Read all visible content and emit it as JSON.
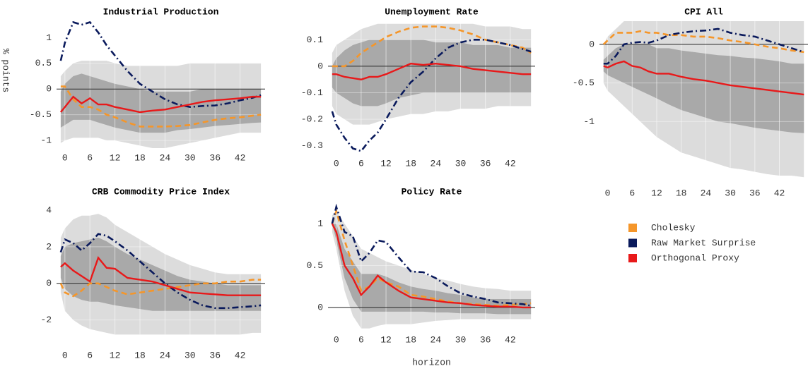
{
  "chart_data": [
    {
      "type": "line",
      "title": "Industrial Production",
      "y_label": "% points",
      "x": [
        -1,
        0,
        2,
        4,
        6,
        8,
        10,
        12,
        15,
        18,
        21,
        24,
        27,
        30,
        33,
        36,
        39,
        42,
        45,
        47
      ],
      "xlim": [
        -2,
        48
      ],
      "xticks": [
        0,
        6,
        12,
        18,
        24,
        30,
        36,
        42
      ],
      "ylim": [
        -1.15,
        1.32
      ],
      "yticks": [
        -1,
        -0.5,
        0,
        0.5,
        1
      ],
      "grid": true,
      "hline": 0,
      "bands": [
        {
          "color": "#dcdcdc",
          "upper": [
            0.25,
            0.35,
            0.5,
            0.55,
            0.55,
            0.55,
            0.55,
            0.5,
            0.45,
            0.45,
            0.45,
            0.45,
            0.45,
            0.5,
            0.5,
            0.5,
            0.5,
            0.5,
            0.5,
            0.5
          ],
          "lower": [
            -1.05,
            -1.0,
            -0.95,
            -0.95,
            -0.95,
            -0.95,
            -1.0,
            -1.0,
            -1.05,
            -1.1,
            -1.15,
            -1.15,
            -1.1,
            -1.05,
            -1.0,
            -0.95,
            -0.9,
            -0.85,
            -0.85,
            -0.85
          ]
        },
        {
          "color": "#a9a9a9",
          "upper": [
            -0.05,
            0.1,
            0.25,
            0.3,
            0.25,
            0.2,
            0.15,
            0.1,
            0.05,
            0.0,
            -0.05,
            -0.05,
            -0.05,
            -0.05,
            0.0,
            0.0,
            0.0,
            0.0,
            0.0,
            0.0
          ],
          "lower": [
            -0.75,
            -0.7,
            -0.6,
            -0.6,
            -0.6,
            -0.65,
            -0.7,
            -0.75,
            -0.8,
            -0.85,
            -0.85,
            -0.85,
            -0.8,
            -0.78,
            -0.75,
            -0.72,
            -0.7,
            -0.68,
            -0.66,
            -0.65
          ]
        }
      ],
      "series": [
        {
          "name": "Cholesky",
          "color": "#f5962a",
          "style": "dashed",
          "values": [
            0.05,
            0.05,
            -0.2,
            -0.35,
            -0.35,
            -0.4,
            -0.5,
            -0.55,
            -0.65,
            -0.73,
            -0.73,
            -0.73,
            -0.72,
            -0.7,
            -0.65,
            -0.6,
            -0.57,
            -0.55,
            -0.52,
            -0.5
          ]
        },
        {
          "name": "Raw Market Surprise",
          "color": "#0a1a5c",
          "style": "dashdot",
          "values": [
            0.55,
            0.9,
            1.3,
            1.25,
            1.3,
            1.1,
            0.85,
            0.65,
            0.35,
            0.1,
            -0.05,
            -0.2,
            -0.3,
            -0.35,
            -0.33,
            -0.32,
            -0.28,
            -0.22,
            -0.17,
            -0.12
          ]
        },
        {
          "name": "Orthogonal Proxy",
          "color": "#e8191a",
          "style": "solid",
          "values": [
            -0.45,
            -0.35,
            -0.15,
            -0.28,
            -0.18,
            -0.3,
            -0.3,
            -0.35,
            -0.4,
            -0.45,
            -0.42,
            -0.4,
            -0.35,
            -0.3,
            -0.25,
            -0.22,
            -0.2,
            -0.18,
            -0.15,
            -0.15
          ]
        }
      ]
    },
    {
      "type": "line",
      "title": "Unemployment Rate",
      "x": [
        -1,
        0,
        2,
        4,
        6,
        8,
        10,
        12,
        15,
        18,
        21,
        24,
        27,
        30,
        33,
        36,
        39,
        42,
        45,
        47
      ],
      "xlim": [
        -2,
        48
      ],
      "xticks": [
        0,
        6,
        12,
        18,
        24,
        30,
        36,
        42
      ],
      "ylim": [
        -0.33,
        0.17
      ],
      "yticks": [
        -0.3,
        -0.2,
        -0.1,
        0,
        0.1
      ],
      "grid": true,
      "hline": 0,
      "bands": [
        {
          "color": "#dcdcdc",
          "upper": [
            0.05,
            0.08,
            0.1,
            0.12,
            0.14,
            0.15,
            0.16,
            0.16,
            0.16,
            0.16,
            0.16,
            0.16,
            0.16,
            0.16,
            0.16,
            0.15,
            0.15,
            0.15,
            0.14,
            0.14
          ],
          "lower": [
            -0.15,
            -0.18,
            -0.2,
            -0.22,
            -0.22,
            -0.22,
            -0.21,
            -0.2,
            -0.19,
            -0.18,
            -0.18,
            -0.17,
            -0.17,
            -0.16,
            -0.16,
            -0.16,
            -0.15,
            -0.15,
            -0.15,
            -0.15
          ]
        },
        {
          "color": "#a9a9a9",
          "upper": [
            0.0,
            0.03,
            0.06,
            0.08,
            0.09,
            0.1,
            0.1,
            0.1,
            0.1,
            0.1,
            0.1,
            0.09,
            0.09,
            0.09,
            0.08,
            0.08,
            0.08,
            0.07,
            0.07,
            0.07
          ],
          "lower": [
            -0.08,
            -0.1,
            -0.12,
            -0.14,
            -0.15,
            -0.15,
            -0.15,
            -0.14,
            -0.12,
            -0.11,
            -0.1,
            -0.1,
            -0.1,
            -0.1,
            -0.1,
            -0.1,
            -0.1,
            -0.1,
            -0.1,
            -0.1
          ]
        }
      ],
      "series": [
        {
          "color": "#f5962a",
          "style": "dashed",
          "values": [
            0.0,
            0.0,
            0.0,
            0.02,
            0.05,
            0.07,
            0.09,
            0.11,
            0.13,
            0.145,
            0.15,
            0.15,
            0.145,
            0.135,
            0.12,
            0.1,
            0.09,
            0.08,
            0.07,
            0.05
          ]
        },
        {
          "color": "#0a1a5c",
          "style": "dashdot",
          "values": [
            -0.17,
            -0.22,
            -0.27,
            -0.31,
            -0.32,
            -0.28,
            -0.25,
            -0.2,
            -0.12,
            -0.06,
            -0.02,
            0.03,
            0.07,
            0.09,
            0.1,
            0.1,
            0.09,
            0.08,
            0.065,
            0.055
          ]
        },
        {
          "color": "#e8191a",
          "style": "solid",
          "values": [
            -0.03,
            -0.03,
            -0.04,
            -0.045,
            -0.05,
            -0.04,
            -0.04,
            -0.03,
            -0.01,
            0.01,
            0.005,
            0.01,
            0.005,
            0.0,
            -0.01,
            -0.015,
            -0.02,
            -0.025,
            -0.03,
            -0.03
          ]
        }
      ]
    },
    {
      "type": "line",
      "title": "CPI All",
      "x": [
        -1,
        0,
        2,
        4,
        6,
        8,
        10,
        12,
        15,
        18,
        21,
        24,
        27,
        30,
        33,
        36,
        39,
        42,
        45,
        48
      ],
      "xlim": [
        -2,
        49
      ],
      "xticks": [
        0,
        6,
        12,
        18,
        24,
        30,
        36,
        42
      ],
      "ylim": [
        -1.8,
        0.3
      ],
      "yticks": [
        -1,
        -0.5,
        0
      ],
      "grid": true,
      "hline": 0,
      "bands": [
        {
          "color": "#dcdcdc",
          "upper": [
            0.0,
            0.1,
            0.2,
            0.3,
            0.3,
            0.3,
            0.3,
            0.3,
            0.3,
            0.3,
            0.3,
            0.3,
            0.3,
            0.3,
            0.3,
            0.3,
            0.3,
            0.3,
            0.3,
            0.3
          ],
          "lower": [
            -0.5,
            -0.6,
            -0.7,
            -0.8,
            -0.9,
            -1.0,
            -1.1,
            -1.2,
            -1.3,
            -1.4,
            -1.45,
            -1.5,
            -1.55,
            -1.6,
            -1.62,
            -1.65,
            -1.68,
            -1.7,
            -1.7,
            -1.72
          ]
        },
        {
          "color": "#a9a9a9",
          "upper": [
            -0.2,
            -0.15,
            -0.05,
            0.0,
            0.0,
            0.0,
            0.0,
            -0.05,
            -0.05,
            -0.08,
            -0.1,
            -0.12,
            -0.14,
            -0.15,
            -0.17,
            -0.18,
            -0.2,
            -0.22,
            -0.25,
            -0.25
          ],
          "lower": [
            -0.35,
            -0.4,
            -0.45,
            -0.5,
            -0.55,
            -0.6,
            -0.65,
            -0.7,
            -0.78,
            -0.85,
            -0.9,
            -0.95,
            -1.0,
            -1.02,
            -1.05,
            -1.08,
            -1.1,
            -1.12,
            -1.14,
            -1.15
          ]
        }
      ],
      "series": [
        {
          "color": "#f5962a",
          "style": "dashed",
          "values": [
            0.0,
            0.05,
            0.15,
            0.15,
            0.15,
            0.17,
            0.15,
            0.15,
            0.12,
            0.12,
            0.1,
            0.1,
            0.08,
            0.05,
            0.03,
            0.0,
            -0.03,
            -0.05,
            -0.08,
            -0.1
          ]
        },
        {
          "color": "#0a1a5c",
          "style": "dashdot",
          "values": [
            -0.25,
            -0.25,
            -0.15,
            0.0,
            0.02,
            0.03,
            0.02,
            0.05,
            0.12,
            0.15,
            0.17,
            0.18,
            0.2,
            0.15,
            0.12,
            0.1,
            0.05,
            0.0,
            -0.05,
            -0.1
          ]
        },
        {
          "color": "#e8191a",
          "style": "solid",
          "values": [
            -0.28,
            -0.3,
            -0.25,
            -0.22,
            -0.28,
            -0.3,
            -0.35,
            -0.38,
            -0.38,
            -0.42,
            -0.45,
            -0.47,
            -0.5,
            -0.53,
            -0.55,
            -0.57,
            -0.59,
            -0.61,
            -0.63,
            -0.65
          ]
        }
      ]
    },
    {
      "type": "line",
      "title": "CRB Commodity Price Index",
      "x": [
        -1,
        0,
        2,
        4,
        6,
        8,
        10,
        12,
        15,
        18,
        21,
        24,
        27,
        30,
        33,
        36,
        39,
        42,
        45,
        47
      ],
      "xlim": [
        -2,
        48
      ],
      "xticks": [
        0,
        6,
        12,
        18,
        24,
        30,
        36,
        42
      ],
      "ylim": [
        -3.4,
        4.5
      ],
      "yticks": [
        -2,
        0,
        2,
        4
      ],
      "grid": true,
      "hline": 0,
      "bands": [
        {
          "color": "#dcdcdc",
          "upper": [
            2.5,
            3.0,
            3.5,
            3.7,
            3.7,
            3.8,
            3.6,
            3.2,
            2.8,
            2.4,
            2.0,
            1.6,
            1.3,
            1.0,
            0.8,
            0.6,
            0.5,
            0.5,
            0.5,
            0.5
          ],
          "lower": [
            -0.5,
            -1.5,
            -2.0,
            -2.3,
            -2.5,
            -2.6,
            -2.7,
            -2.8,
            -2.8,
            -2.8,
            -2.8,
            -2.8,
            -2.8,
            -2.8,
            -2.8,
            -2.8,
            -2.8,
            -2.8,
            -2.7,
            -2.7
          ]
        },
        {
          "color": "#a9a9a9",
          "upper": [
            1.5,
            2.0,
            2.2,
            2.3,
            2.4,
            2.5,
            2.3,
            2.0,
            1.6,
            1.3,
            1.0,
            0.7,
            0.4,
            0.2,
            0.1,
            0.0,
            -0.1,
            -0.1,
            -0.1,
            -0.1
          ],
          "lower": [
            0.3,
            -0.3,
            -0.7,
            -0.9,
            -1.0,
            -1.0,
            -1.1,
            -1.2,
            -1.3,
            -1.4,
            -1.5,
            -1.5,
            -1.5,
            -1.5,
            -1.5,
            -1.5,
            -1.5,
            -1.5,
            -1.5,
            -1.5
          ]
        }
      ],
      "series": [
        {
          "color": "#f5962a",
          "style": "dashed",
          "values": [
            0.0,
            -0.5,
            -0.7,
            -0.4,
            0.0,
            0.0,
            -0.2,
            -0.4,
            -0.6,
            -0.5,
            -0.4,
            -0.3,
            -0.2,
            -0.1,
            0.0,
            0.0,
            0.1,
            0.1,
            0.2,
            0.2
          ]
        },
        {
          "color": "#0a1a5c",
          "style": "dashdot",
          "values": [
            1.7,
            2.4,
            2.2,
            1.8,
            2.2,
            2.7,
            2.6,
            2.3,
            1.8,
            1.2,
            0.6,
            0.0,
            -0.5,
            -0.9,
            -1.2,
            -1.35,
            -1.35,
            -1.3,
            -1.25,
            -1.2
          ]
        },
        {
          "color": "#e8191a",
          "style": "solid",
          "values": [
            0.9,
            1.1,
            0.7,
            0.4,
            0.1,
            1.4,
            0.85,
            0.8,
            0.3,
            0.2,
            0.1,
            -0.1,
            -0.3,
            -0.5,
            -0.55,
            -0.6,
            -0.65,
            -0.65,
            -0.65,
            -0.65
          ]
        }
      ]
    },
    {
      "type": "line",
      "title": "Policy Rate",
      "x_label": "horizon",
      "x": [
        -1,
        0,
        2,
        4,
        6,
        8,
        10,
        12,
        15,
        18,
        21,
        24,
        27,
        30,
        33,
        36,
        39,
        42,
        45,
        47
      ],
      "xlim": [
        -2,
        48
      ],
      "xticks": [
        0,
        6,
        12,
        18,
        24,
        30,
        36,
        42
      ],
      "ylim": [
        -0.27,
        1.27
      ],
      "yticks": [
        0,
        0.5,
        1
      ],
      "grid": true,
      "hline": 0,
      "bands": [
        {
          "color": "#dcdcdc",
          "upper": [
            1.1,
            1.15,
            1.0,
            0.85,
            0.7,
            0.65,
            0.6,
            0.55,
            0.5,
            0.45,
            0.4,
            0.35,
            0.32,
            0.28,
            0.25,
            0.23,
            0.22,
            0.2,
            0.2,
            0.2
          ],
          "lower": [
            0.9,
            0.7,
            0.2,
            -0.1,
            -0.25,
            -0.25,
            -0.22,
            -0.2,
            -0.2,
            -0.2,
            -0.18,
            -0.16,
            -0.15,
            -0.14,
            -0.14,
            -0.14,
            -0.14,
            -0.14,
            -0.14,
            -0.14
          ]
        },
        {
          "color": "#a9a9a9",
          "upper": [
            1.0,
            1.0,
            0.7,
            0.55,
            0.4,
            0.4,
            0.4,
            0.37,
            0.3,
            0.25,
            0.22,
            0.2,
            0.17,
            0.15,
            0.12,
            0.1,
            0.1,
            0.1,
            0.1,
            0.1
          ],
          "lower": [
            1.0,
            0.8,
            0.35,
            0.1,
            -0.05,
            -0.05,
            -0.05,
            -0.05,
            -0.05,
            -0.05,
            -0.05,
            -0.06,
            -0.06,
            -0.07,
            -0.07,
            -0.07,
            -0.08,
            -0.08,
            -0.08,
            -0.08
          ]
        }
      ],
      "series": [
        {
          "color": "#f5962a",
          "style": "dashed",
          "values": [
            1.0,
            1.15,
            0.8,
            0.5,
            0.2,
            0.25,
            0.35,
            0.3,
            0.25,
            0.15,
            0.13,
            0.1,
            0.07,
            0.05,
            0.04,
            0.03,
            0.02,
            0.03,
            0.04,
            0.05
          ]
        },
        {
          "color": "#0a1a5c",
          "style": "dashdot",
          "values": [
            1.0,
            1.2,
            0.9,
            0.85,
            0.55,
            0.65,
            0.8,
            0.78,
            0.6,
            0.43,
            0.42,
            0.35,
            0.25,
            0.17,
            0.13,
            0.1,
            0.06,
            0.05,
            0.04,
            0.02
          ]
        },
        {
          "color": "#e8191a",
          "style": "solid",
          "values": [
            1.0,
            0.9,
            0.5,
            0.35,
            0.15,
            0.25,
            0.38,
            0.3,
            0.2,
            0.12,
            0.1,
            0.08,
            0.06,
            0.05,
            0.03,
            0.02,
            0.01,
            0.01,
            0.0,
            0.0
          ]
        }
      ]
    }
  ]
}
